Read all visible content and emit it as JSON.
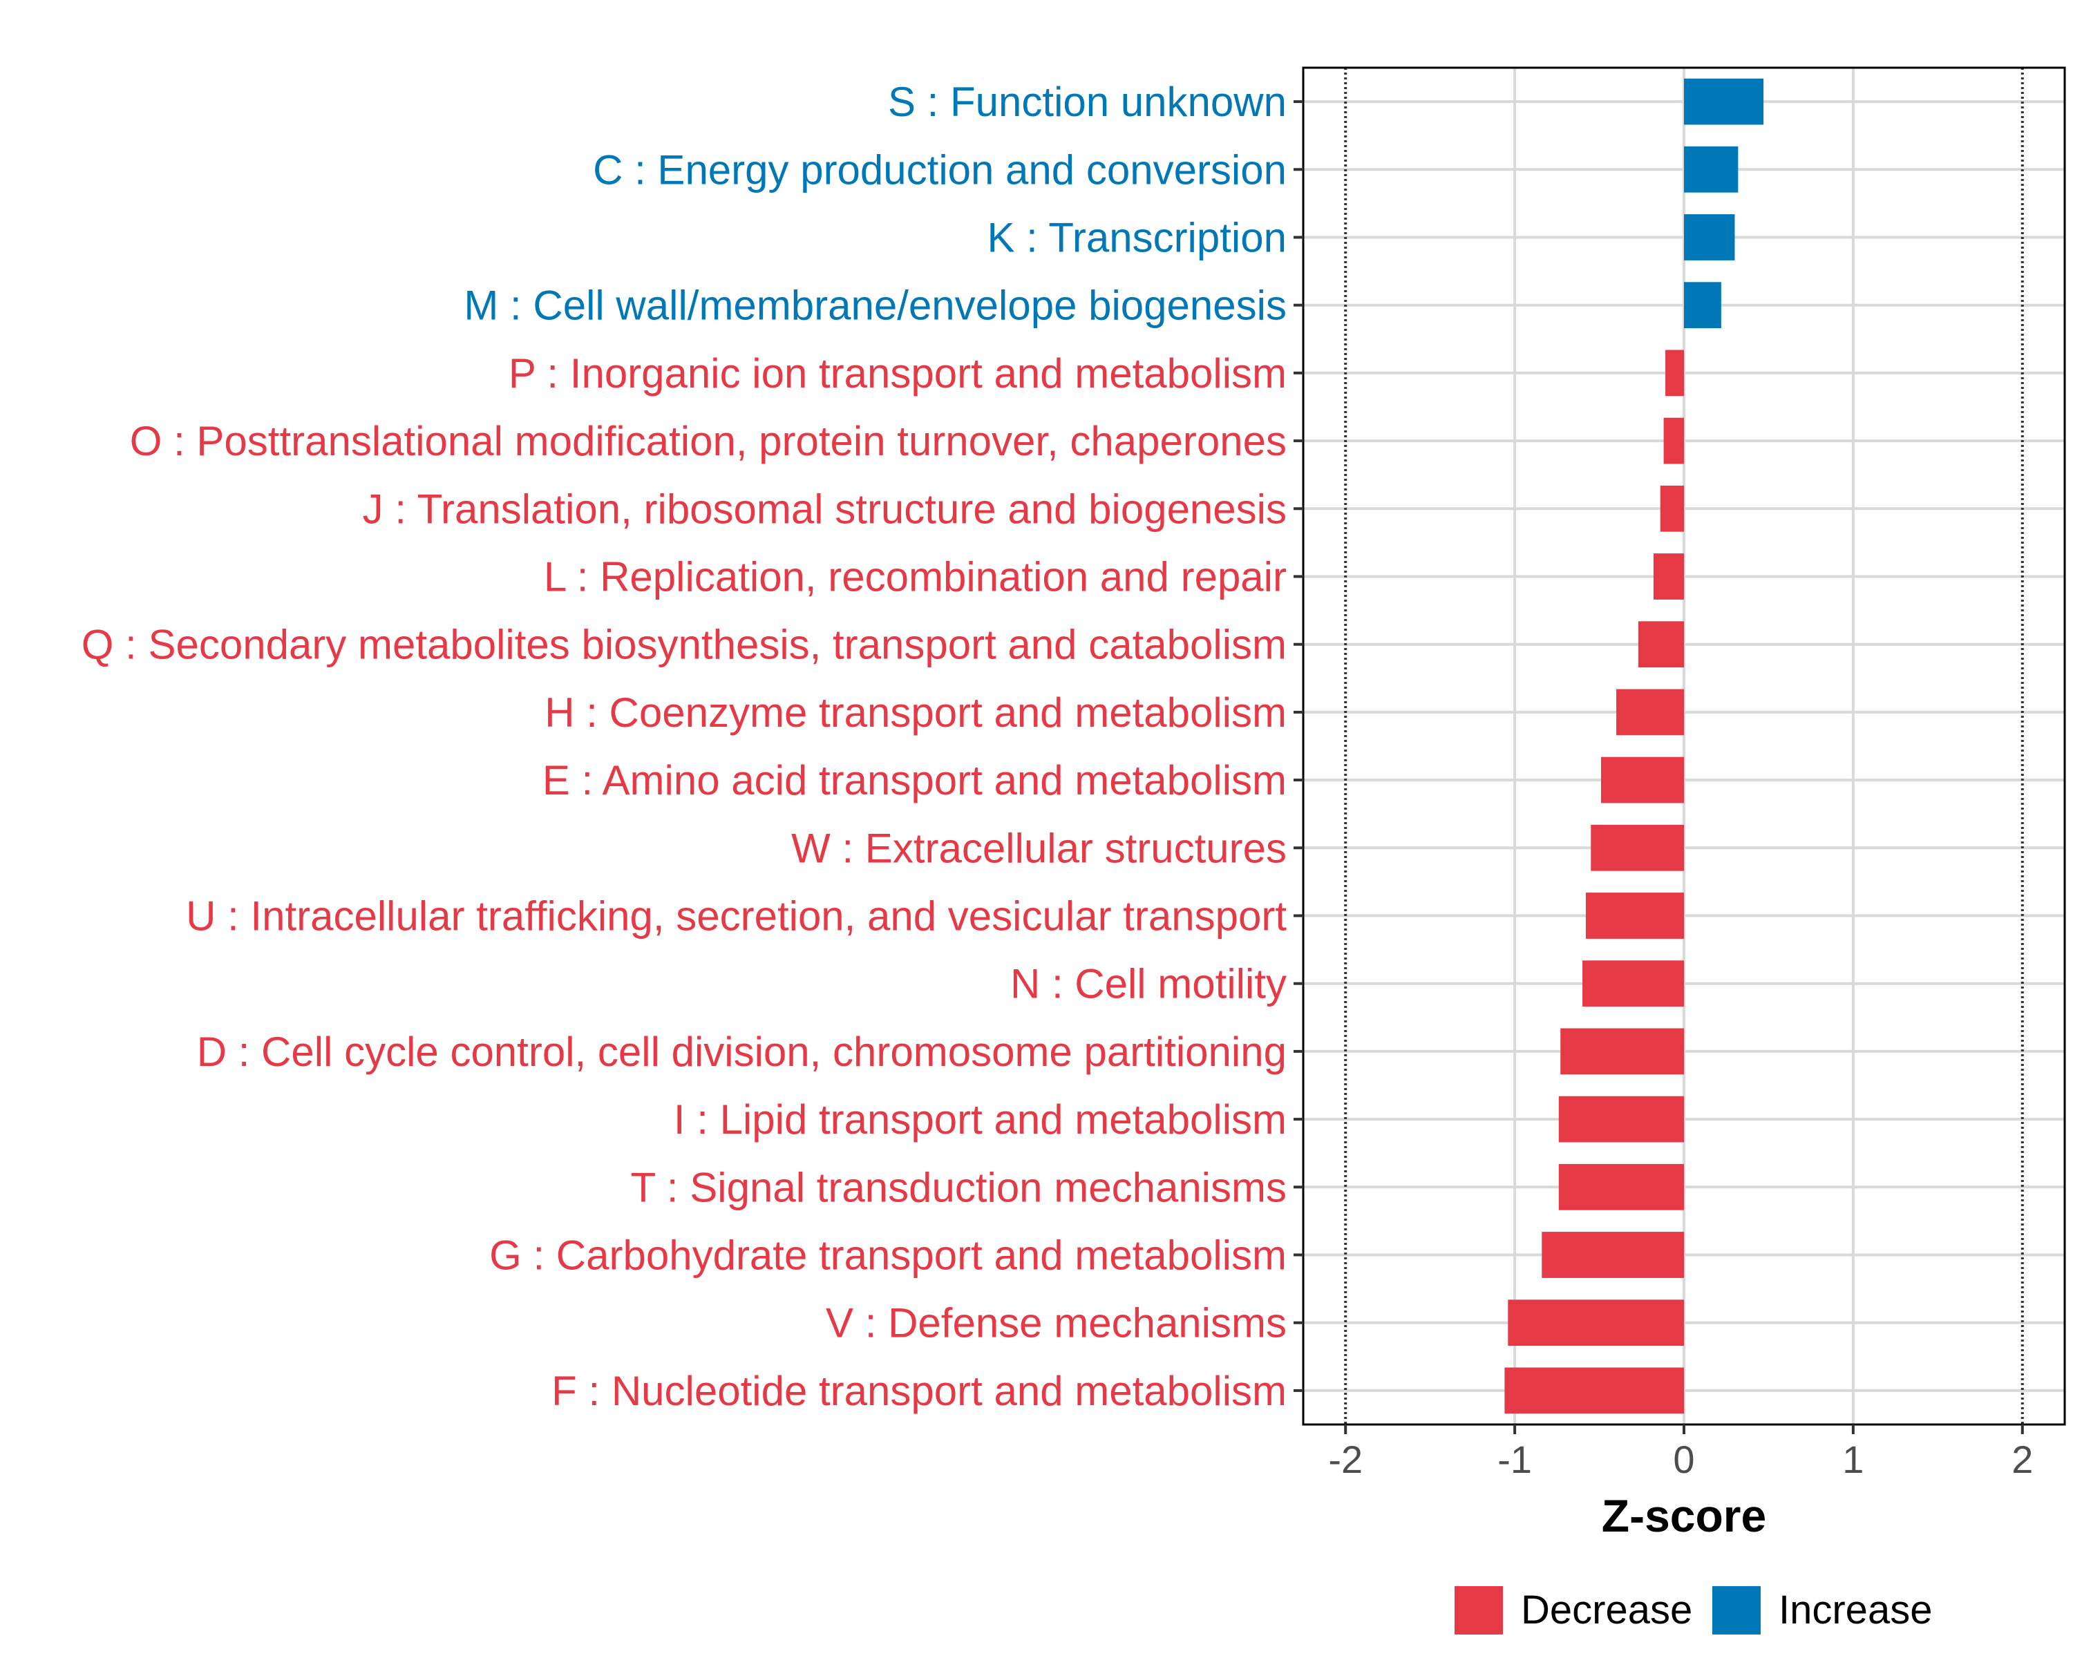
{
  "chart_data": {
    "type": "bar",
    "orientation": "horizontal",
    "title": "",
    "xlabel": "Z-score",
    "ylabel": "",
    "xlim": [
      -2.25,
      2.25
    ],
    "x_ticks": [
      -2,
      -1,
      0,
      1,
      2
    ],
    "x_tick_labels": [
      "-2",
      "-1",
      "0",
      "1",
      "2"
    ],
    "reference_lines": [
      -2,
      2
    ],
    "grid": true,
    "categories": [
      "S : Function unknown",
      "C : Energy production and conversion",
      "K : Transcription",
      "M : Cell wall/membrane/envelope biogenesis",
      "P : Inorganic ion transport and metabolism",
      "O : Posttranslational modification, protein turnover, chaperones",
      "J : Translation, ribosomal structure and biogenesis",
      "L : Replication, recombination and repair",
      "Q : Secondary metabolites biosynthesis, transport and catabolism",
      "H : Coenzyme transport and metabolism",
      "E : Amino acid transport and metabolism",
      "W : Extracellular structures",
      "U : Intracellular trafficking, secretion, and vesicular transport",
      "N : Cell motility",
      "D : Cell cycle control, cell division, chromosome partitioning",
      "I : Lipid transport and metabolism",
      "T : Signal transduction mechanisms",
      "G : Carbohydrate transport and metabolism",
      "V : Defense mechanisms",
      "F : Nucleotide transport and metabolism"
    ],
    "values": [
      0.47,
      0.32,
      0.3,
      0.22,
      -0.11,
      -0.12,
      -0.14,
      -0.18,
      -0.27,
      -0.4,
      -0.49,
      -0.55,
      -0.58,
      -0.6,
      -0.73,
      -0.74,
      -0.74,
      -0.84,
      -1.04,
      -1.06
    ],
    "groups": [
      "Increase",
      "Increase",
      "Increase",
      "Increase",
      "Decrease",
      "Decrease",
      "Decrease",
      "Decrease",
      "Decrease",
      "Decrease",
      "Decrease",
      "Decrease",
      "Decrease",
      "Decrease",
      "Decrease",
      "Decrease",
      "Decrease",
      "Decrease",
      "Decrease",
      "Decrease"
    ],
    "legend": {
      "position": "bottom",
      "items": [
        {
          "label": "Decrease",
          "color": "#E63946"
        },
        {
          "label": "Increase",
          "color": "#0077B6"
        }
      ]
    }
  },
  "colors": {
    "decrease": "#E63946",
    "increase": "#0077B6",
    "grid": "#d9d9d9",
    "axis": "#000000"
  }
}
